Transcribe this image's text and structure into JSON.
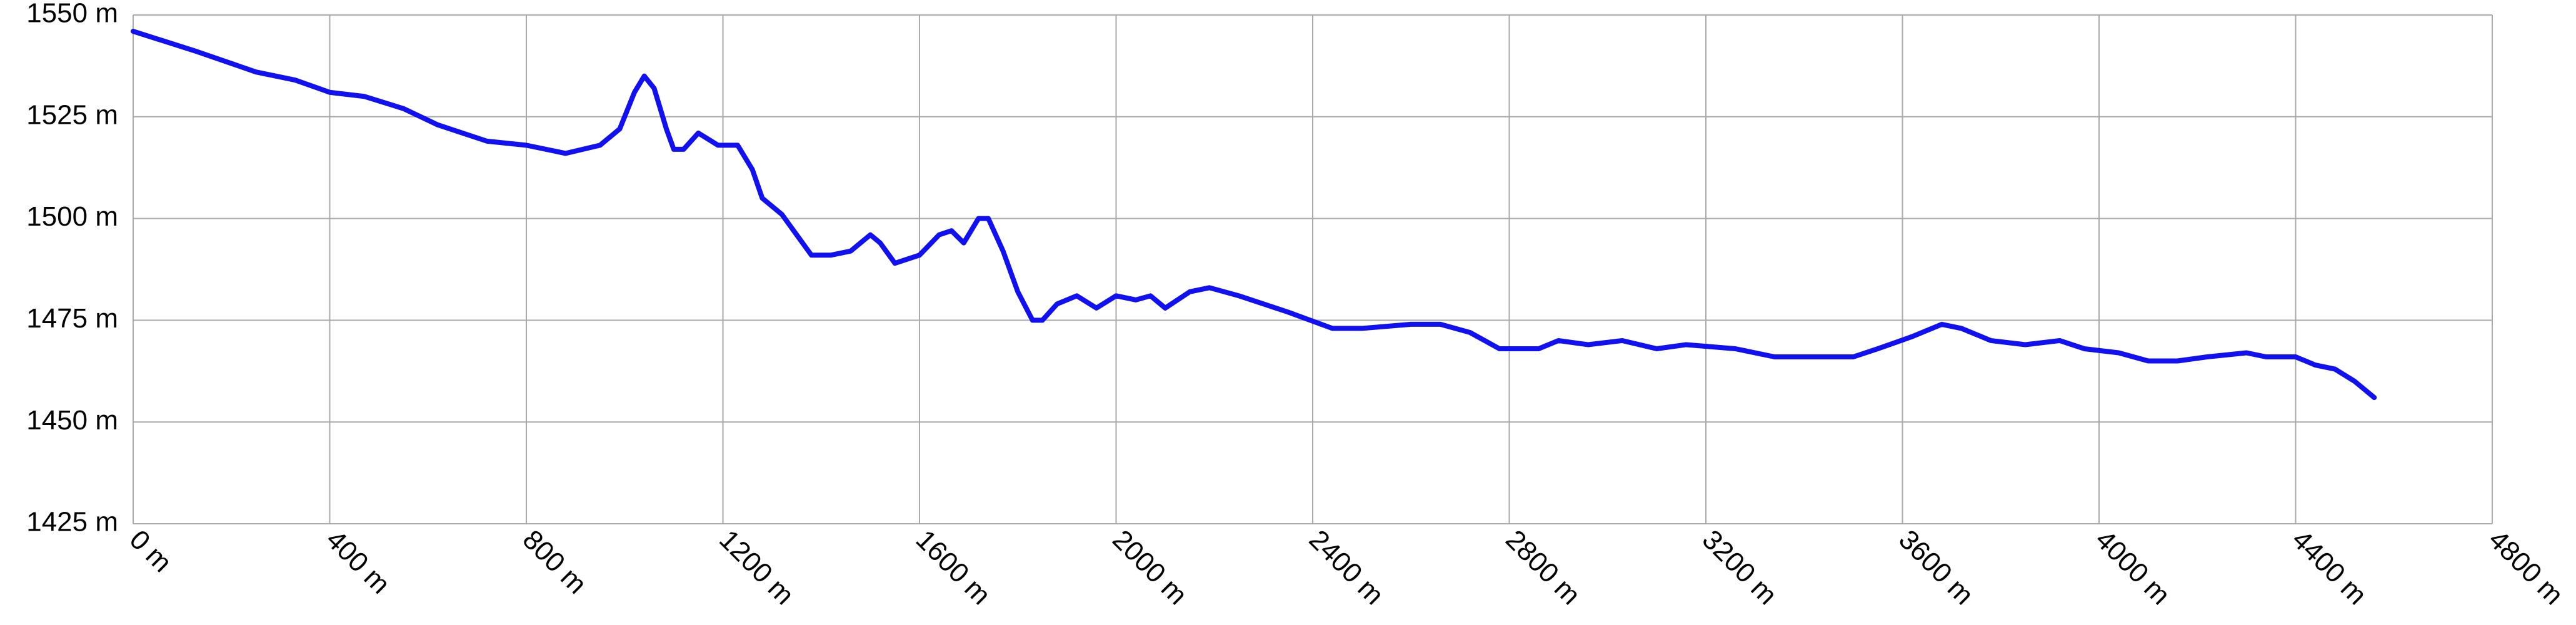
{
  "chart_data": {
    "type": "line",
    "color": "#1010f0",
    "grid": true,
    "x": [
      0,
      130,
      250,
      330,
      400,
      470,
      550,
      620,
      720,
      800,
      880,
      950,
      990,
      1020,
      1040,
      1060,
      1085,
      1100,
      1120,
      1150,
      1190,
      1230,
      1260,
      1280,
      1320,
      1350,
      1380,
      1420,
      1460,
      1500,
      1520,
      1550,
      1600,
      1640,
      1665,
      1690,
      1720,
      1740,
      1770,
      1800,
      1830,
      1850,
      1880,
      1920,
      1960,
      2000,
      2040,
      2070,
      2100,
      2150,
      2190,
      2250,
      2350,
      2440,
      2500,
      2600,
      2660,
      2720,
      2780,
      2860,
      2900,
      2960,
      3030,
      3100,
      3160,
      3260,
      3340,
      3420,
      3500,
      3550,
      3620,
      3680,
      3720,
      3780,
      3850,
      3920,
      3970,
      4040,
      4100,
      4160,
      4220,
      4300,
      4340,
      4400,
      4440,
      4480,
      4520,
      4540,
      4560
    ],
    "values": [
      1546,
      1541,
      1536,
      1534,
      1531,
      1530,
      1527,
      1523,
      1519,
      1518,
      1516,
      1518,
      1522,
      1531,
      1535,
      1532,
      1522,
      1517,
      1517,
      1521,
      1518,
      1518,
      1512,
      1505,
      1501,
      1496,
      1491,
      1491,
      1492,
      1496,
      1494,
      1489,
      1491,
      1496,
      1497,
      1494,
      1500,
      1500,
      1492,
      1482,
      1475,
      1475,
      1479,
      1481,
      1478,
      1481,
      1480,
      1481,
      1478,
      1482,
      1483,
      1481,
      1477,
      1473,
      1473,
      1474,
      1474,
      1472,
      1468,
      1468,
      1470,
      1469,
      1470,
      1468,
      1469,
      1468,
      1466,
      1466,
      1466,
      1468,
      1471,
      1474,
      1473,
      1470,
      1469,
      1470,
      1468,
      1467,
      1465,
      1465,
      1466,
      1467,
      1466,
      1466,
      1464,
      1463,
      1460,
      1458,
      1456
    ],
    "xlim": [
      0,
      4800
    ],
    "xticks": [
      {
        "value": 0,
        "label": "0 m"
      },
      {
        "value": 400,
        "label": "400 m"
      },
      {
        "value": 800,
        "label": "800 m"
      },
      {
        "value": 1200,
        "label": "1200 m"
      },
      {
        "value": 1600,
        "label": "1600 m"
      },
      {
        "value": 2000,
        "label": "2000 m"
      },
      {
        "value": 2400,
        "label": "2400 m"
      },
      {
        "value": 2800,
        "label": "2800 m"
      },
      {
        "value": 3200,
        "label": "3200 m"
      },
      {
        "value": 3600,
        "label": "3600 m"
      },
      {
        "value": 4000,
        "label": "4000 m"
      },
      {
        "value": 4400,
        "label": "4400 m"
      },
      {
        "value": 4800,
        "label": "4800 m"
      }
    ],
    "ylim": [
      1425,
      1550
    ],
    "yticks": [
      {
        "value": 1425,
        "label": "1425 m"
      },
      {
        "value": 1450,
        "label": "1450 m"
      },
      {
        "value": 1475,
        "label": "1475 m"
      },
      {
        "value": 1500,
        "label": "1500 m"
      },
      {
        "value": 1525,
        "label": "1525 m"
      },
      {
        "value": 1550,
        "label": "1550 m"
      }
    ]
  }
}
